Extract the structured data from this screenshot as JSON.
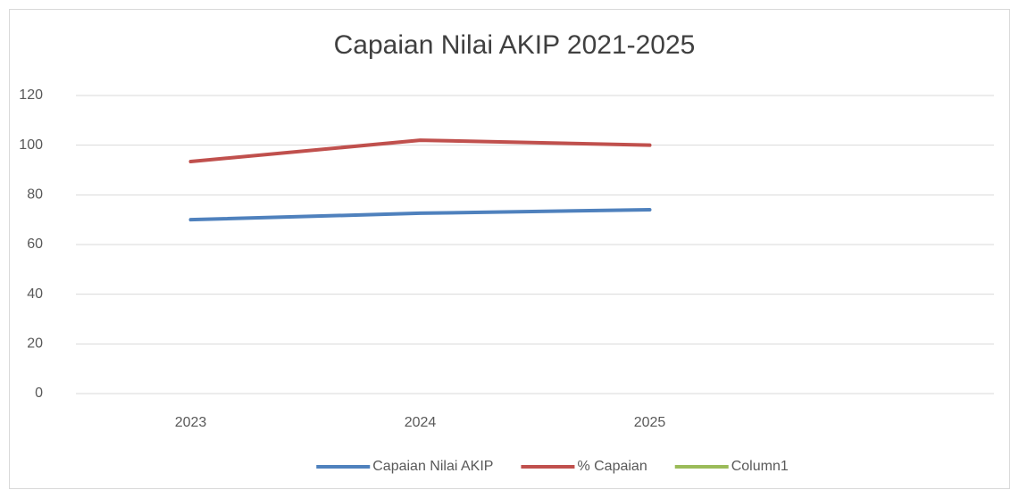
{
  "chart_data": {
    "type": "line",
    "title": "Capaian Nilai AKIP 2021-2025",
    "categories": [
      "2023",
      "2024",
      "2025",
      null
    ],
    "series": [
      {
        "name": "Capaian Nilai AKIP",
        "color": "#4f81bd",
        "values": [
          70,
          72.6,
          74,
          null
        ]
      },
      {
        "name": "% Capaian",
        "color": "#c0504d",
        "values": [
          93.4,
          102,
          100,
          null
        ]
      },
      {
        "name": "Column1",
        "color": "#9bbb59",
        "values": [
          null,
          null,
          null,
          null
        ]
      }
    ],
    "ylim": [
      0,
      120
    ],
    "yticks": [
      0,
      20,
      40,
      60,
      80,
      100,
      120
    ],
    "grid": true,
    "legend": "bottom"
  }
}
